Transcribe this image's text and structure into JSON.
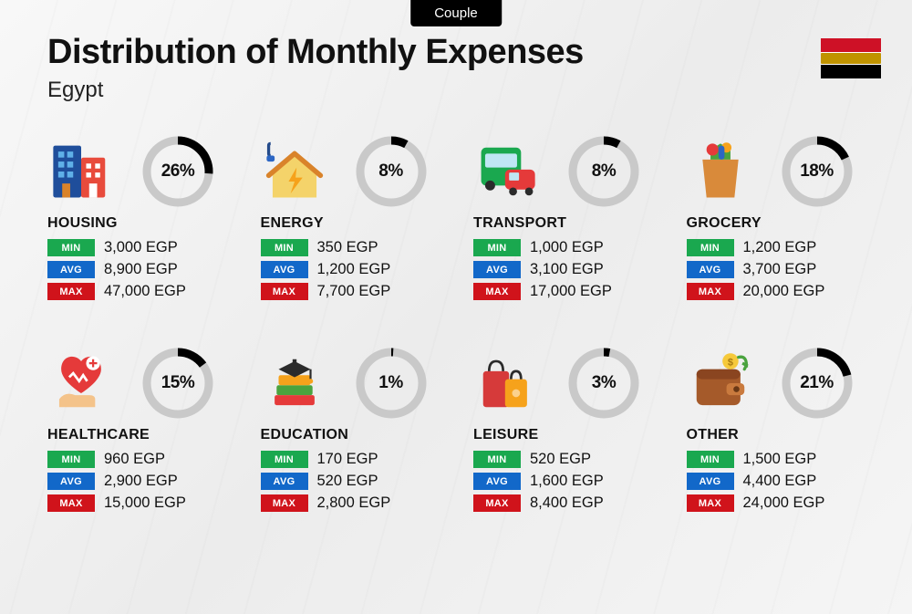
{
  "header": {
    "badge": "Couple",
    "title": "Distribution of Monthly Expenses",
    "country": "Egypt"
  },
  "donut": {
    "track_color": "#c9c9c9",
    "fill_color": "#000000",
    "stroke_width": 9,
    "radius": 34
  },
  "badges": {
    "min": {
      "label": "MIN",
      "bg": "#1aa84f"
    },
    "avg": {
      "label": "AVG",
      "bg": "#1268c9"
    },
    "max": {
      "label": "MAX",
      "bg": "#d0131b"
    }
  },
  "currency": "EGP",
  "categories": [
    {
      "key": "housing",
      "name": "HOUSING",
      "percent": 26,
      "min": "3,000 EGP",
      "avg": "8,900 EGP",
      "max": "47,000 EGP",
      "icon": "buildings"
    },
    {
      "key": "energy",
      "name": "ENERGY",
      "percent": 8,
      "min": "350 EGP",
      "avg": "1,200 EGP",
      "max": "7,700 EGP",
      "icon": "house-energy"
    },
    {
      "key": "transport",
      "name": "TRANSPORT",
      "percent": 8,
      "min": "1,000 EGP",
      "avg": "3,100 EGP",
      "max": "17,000 EGP",
      "icon": "bus-car"
    },
    {
      "key": "grocery",
      "name": "GROCERY",
      "percent": 18,
      "min": "1,200 EGP",
      "avg": "3,700 EGP",
      "max": "20,000 EGP",
      "icon": "grocery-bag"
    },
    {
      "key": "healthcare",
      "name": "HEALTHCARE",
      "percent": 15,
      "min": "960 EGP",
      "avg": "2,900 EGP",
      "max": "15,000 EGP",
      "icon": "heart-hand"
    },
    {
      "key": "education",
      "name": "EDUCATION",
      "percent": 1,
      "min": "170 EGP",
      "avg": "520 EGP",
      "max": "2,800 EGP",
      "icon": "grad-books"
    },
    {
      "key": "leisure",
      "name": "LEISURE",
      "percent": 3,
      "min": "520 EGP",
      "avg": "1,600 EGP",
      "max": "8,400 EGP",
      "icon": "shopping-bags"
    },
    {
      "key": "other",
      "name": "OTHER",
      "percent": 21,
      "min": "1,500 EGP",
      "avg": "4,400 EGP",
      "max": "24,000 EGP",
      "icon": "wallet"
    }
  ],
  "icon_svgs": {
    "buildings": "<svg viewBox='0 0 64 64'><rect x='4' y='6' width='28' height='52' rx='2' fill='#1f4e9b'/><rect x='9' y='12' width='6' height='6' fill='#5fb0e8'/><rect x='18' y='12' width='6' height='6' fill='#5fb0e8'/><rect x='9' y='22' width='6' height='6' fill='#5fb0e8'/><rect x='18' y='22' width='6' height='6' fill='#5fb0e8'/><rect x='9' y='32' width='6' height='6' fill='#5fb0e8'/><rect x='18' y='32' width='6' height='6' fill='#5fb0e8'/><rect x='13' y='44' width='8' height='14' fill='#d9832a'/><rect x='32' y='18' width='24' height='40' rx='2' fill='#e84b3c'/><rect x='37' y='24' width='5' height='5' fill='#fff'/><rect x='46' y='24' width='5' height='5' fill='#fff'/><rect x='37' y='33' width='5' height='5' fill='#fff'/><rect x='46' y='33' width='5' height='5' fill='#fff'/><rect x='40' y='44' width='8' height='14' fill='#fff'/></svg>",
    "house-energy": "<svg viewBox='0 0 64 64'><path d='M8 4 Q6 4 6 6 L6 14 Q6 16 8 16' stroke='#244b8a' stroke-width='3' fill='none'/><rect x='4' y='16' width='8' height='6' rx='2' fill='#2c66c4'/><path d='M10 34 L32 16 L54 34 L54 58 L10 58 Z' fill='#f4d36a'/><path d='M6 36 L32 14 L58 36' stroke='#d9832a' stroke-width='5' fill='none' stroke-linejoin='round' stroke-linecap='round'/><path d='M34 28 L26 42 L32 42 L28 54 L40 38 L33 38 Z' fill='#f6a21b'/></svg>",
    "bus-car": "<svg viewBox='0 0 64 64'><rect x='6' y='8' width='40' height='38' rx='5' fill='#1aa84f'/><rect x='10' y='14' width='32' height='14' rx='2' fill='#bfe6f4'/><circle cx='15' cy='46' r='5' fill='#2b2b2b'/><circle cx='37' cy='46' r='5' fill='#2b2b2b'/><rect x='30' y='30' width='30' height='20' rx='5' fill='#e53a3a'/><rect x='34' y='33' width='10' height='8' rx='1' fill='#bfe6f4'/><circle cx='38' cy='52' r='4' fill='#2b2b2b'/><circle cx='54' cy='52' r='4' fill='#2b2b2b'/></svg>",
    "grocery-bag": "<svg viewBox='0 0 64 64'><path d='M14 20 L50 20 L46 58 L18 58 Z' fill='#d98a3a'/><path d='M22 10 L32 4 L42 10 L42 20 L22 20 Z' fill='#4aa33e'/><circle cx='24' cy='10' r='6' fill='#e53a3a'/><circle cx='38' cy='8' r='5' fill='#f6a21b'/><rect x='30' y='6' width='6' height='14' rx='3' fill='#2c66c4'/></svg>",
    "heart-hand": "<svg viewBox='0 0 64 64'><path d='M32 10 C26 2 12 4 12 18 C12 30 32 42 32 42 C32 42 52 30 52 18 C52 4 38 2 32 10 Z' fill='#e53a3a'/><circle cx='44' cy='12' r='7' fill='#fff'/><path d='M44 8 L44 16 M40 12 L48 12' stroke='#e53a3a' stroke-width='2'/><path d='M20 26 L24 22 L30 30 L34 24 L38 30' stroke='#fff' stroke-width='2.5' fill='none'/><path d='M10 48 Q16 40 26 44 L40 44 Q46 44 46 48 L46 56 L10 56 Z' fill='#f4c38a'/></svg>",
    "grad-books": "<svg viewBox='0 0 64 64'><rect x='14' y='34' width='36' height='10' rx='2' fill='#4aa33e'/><rect x='12' y='44' width='40' height='10' rx='2' fill='#e53a3a'/><rect x='16' y='24' width='32' height='10' rx='2' fill='#f6a21b'/><path d='M16 18 L32 10 L48 18 L32 26 Z' fill='#2b2b2b'/><rect x='30' y='8' width='4' height='4' fill='#2b2b2b'/><path d='M48 18 L48 28' stroke='#2b2b2b' stroke-width='2'/><circle cx='48' cy='30' r='2.5' fill='#f6a21b'/></svg>",
    "shopping-bags": "<svg viewBox='0 0 64 64'><rect x='8' y='20' width='26' height='36' rx='3' fill='#d63a3a'/><path d='M14 20 Q14 10 21 10 Q28 10 28 20' stroke='#2b2b2b' stroke-width='2.5' fill='none'/><rect x='30' y='28' width='22' height='28' rx='3' fill='#f6a21b'/><path d='M36 28 Q36 20 41 20 Q46 20 46 28' stroke='#2b2b2b' stroke-width='2.5' fill='none'/><circle cx='41' cy='42' r='4' fill='#fff' opacity='0.5'/></svg>",
    "wallet": "<svg viewBox='0 0 64 64'><rect x='8' y='18' width='44' height='36' rx='6' fill='#a55a2a'/><rect x='8' y='18' width='44' height='10' rx='6' fill='#8a4520'/><rect x='38' y='32' width='18' height='12' rx='4' fill='#c97a3e'/><circle cx='48' cy='38' r='3' fill='#6a3815'/><circle cx='42' cy='10' r='8' fill='#f6c93a'/><text x='42' y='14' font-size='10' text-anchor='middle' fill='#a87b12' font-weight='bold'>$</text><path d='M50 6 Q58 4 58 14 L54 12 L58 14 L56 18' stroke='#4aa33e' stroke-width='3' fill='none' stroke-linecap='round'/></svg>"
  }
}
